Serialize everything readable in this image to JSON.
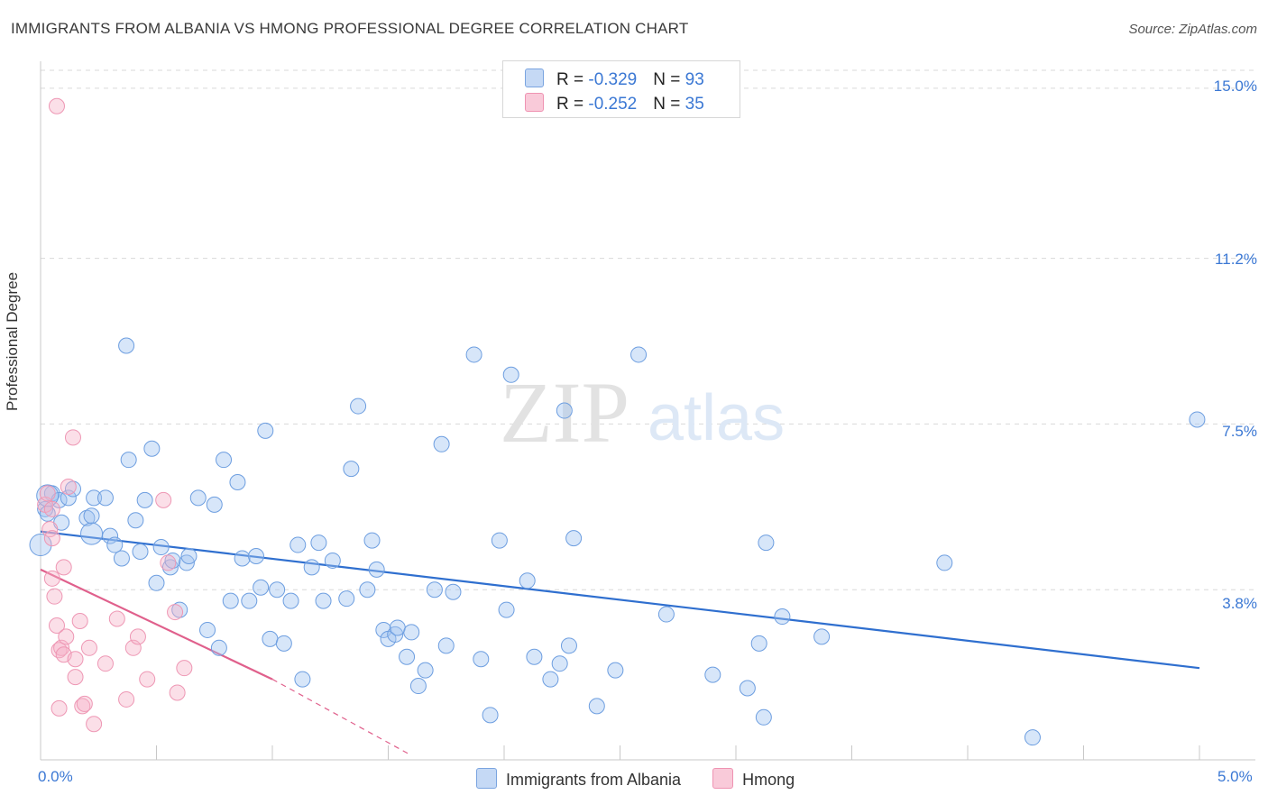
{
  "title": "IMMIGRANTS FROM ALBANIA VS HMONG PROFESSIONAL DEGREE CORRELATION CHART",
  "source": "Source: ZipAtlas.com",
  "watermark": {
    "zip": "ZIP",
    "atlas": "atlas"
  },
  "legend": {
    "albania": {
      "r_label": "R = ",
      "r_value": "-0.329",
      "n_label": "N = ",
      "n_value": "93",
      "color": "#8fb4e8"
    },
    "hmong": {
      "r_label": "R = ",
      "r_value": "-0.252",
      "n_label": "N = ",
      "n_value": "35",
      "color": "#f4a3be"
    }
  },
  "bottom_legend": {
    "albania": "Immigrants from Albania",
    "hmong": "Hmong"
  },
  "chart_data": {
    "type": "scatter",
    "title": "IMMIGRANTS FROM ALBANIA VS HMONG PROFESSIONAL DEGREE CORRELATION CHART",
    "xlabel": "",
    "ylabel": "Professional Degree",
    "xlim": [
      0,
      5.0
    ],
    "ylim": [
      0,
      15.4
    ],
    "x_tick_labels": [
      "0.0%",
      "5.0%"
    ],
    "y_ticks": [
      3.8,
      7.5,
      11.2,
      15.0
    ],
    "y_tick_labels": [
      "3.8%",
      "7.5%",
      "11.2%",
      "15.0%"
    ],
    "grid": true,
    "series": [
      {
        "name": "Immigrants from Albania",
        "color": "#8fb4e8",
        "line_color": "#2f6fcf",
        "trend": {
          "x": [
            0.0,
            5.0
          ],
          "y": [
            5.1,
            2.05
          ]
        },
        "points": [
          [
            0.02,
            5.6
          ],
          [
            0.03,
            5.5
          ],
          [
            0.05,
            5.95
          ],
          [
            0.08,
            5.8
          ],
          [
            0.09,
            5.3
          ],
          [
            0.12,
            5.85
          ],
          [
            0.14,
            6.05
          ],
          [
            0.2,
            5.4
          ],
          [
            0.22,
            5.45
          ],
          [
            0.23,
            5.85
          ],
          [
            0.28,
            5.85
          ],
          [
            0.3,
            5.0
          ],
          [
            0.32,
            4.8
          ],
          [
            0.35,
            4.5
          ],
          [
            0.37,
            9.25
          ],
          [
            0.38,
            6.7
          ],
          [
            0.41,
            5.35
          ],
          [
            0.43,
            4.65
          ],
          [
            0.45,
            5.8
          ],
          [
            0.48,
            6.95
          ],
          [
            0.5,
            3.95
          ],
          [
            0.52,
            4.75
          ],
          [
            0.56,
            4.3
          ],
          [
            0.57,
            4.45
          ],
          [
            0.6,
            3.35
          ],
          [
            0.63,
            4.4
          ],
          [
            0.64,
            4.55
          ],
          [
            0.68,
            5.85
          ],
          [
            0.72,
            2.9
          ],
          [
            0.75,
            5.7
          ],
          [
            0.77,
            2.5
          ],
          [
            0.79,
            6.7
          ],
          [
            0.82,
            3.55
          ],
          [
            0.85,
            6.2
          ],
          [
            0.87,
            4.5
          ],
          [
            0.9,
            3.55
          ],
          [
            0.93,
            4.55
          ],
          [
            0.95,
            3.85
          ],
          [
            0.97,
            7.35
          ],
          [
            0.99,
            2.7
          ],
          [
            1.02,
            3.8
          ],
          [
            1.05,
            2.6
          ],
          [
            1.08,
            3.55
          ],
          [
            1.11,
            4.8
          ],
          [
            1.13,
            1.8
          ],
          [
            1.17,
            4.3
          ],
          [
            1.2,
            4.85
          ],
          [
            1.22,
            3.55
          ],
          [
            1.26,
            4.45
          ],
          [
            1.32,
            3.6
          ],
          [
            1.34,
            6.5
          ],
          [
            1.37,
            7.9
          ],
          [
            1.41,
            3.8
          ],
          [
            1.43,
            4.9
          ],
          [
            1.45,
            4.25
          ],
          [
            1.48,
            2.9
          ],
          [
            1.5,
            2.7
          ],
          [
            1.53,
            2.8
          ],
          [
            1.54,
            2.95
          ],
          [
            1.58,
            2.3
          ],
          [
            1.6,
            2.85
          ],
          [
            1.63,
            1.65
          ],
          [
            1.66,
            2.0
          ],
          [
            1.7,
            3.8
          ],
          [
            1.73,
            7.05
          ],
          [
            1.75,
            2.55
          ],
          [
            1.78,
            3.75
          ],
          [
            1.87,
            9.05
          ],
          [
            1.9,
            2.25
          ],
          [
            1.94,
            1.0
          ],
          [
            1.98,
            4.9
          ],
          [
            2.01,
            3.35
          ],
          [
            2.03,
            8.6
          ],
          [
            2.1,
            4.0
          ],
          [
            2.13,
            2.3
          ],
          [
            2.2,
            1.8
          ],
          [
            2.24,
            2.15
          ],
          [
            2.26,
            7.8
          ],
          [
            2.28,
            2.55
          ],
          [
            2.3,
            4.95
          ],
          [
            2.4,
            1.2
          ],
          [
            2.48,
            2.0
          ],
          [
            2.58,
            9.05
          ],
          [
            2.7,
            3.25
          ],
          [
            2.9,
            1.9
          ],
          [
            3.05,
            1.6
          ],
          [
            3.1,
            2.6
          ],
          [
            3.12,
            0.95
          ],
          [
            3.13,
            4.85
          ],
          [
            3.2,
            3.2
          ],
          [
            3.37,
            2.75
          ],
          [
            3.9,
            4.4
          ],
          [
            4.28,
            0.5
          ],
          [
            4.99,
            7.6
          ]
        ],
        "big_points": [
          [
            0.0,
            4.8
          ],
          [
            0.03,
            5.9
          ],
          [
            0.22,
            5.05
          ]
        ]
      },
      {
        "name": "Hmong",
        "color": "#f4a3be",
        "line_color": "#e0608c",
        "trend": {
          "x": [
            0.0,
            1.0
          ],
          "y": [
            4.25,
            1.8
          ]
        },
        "trend_ext": {
          "x": [
            1.0,
            1.6
          ],
          "y": [
            1.8,
            0.1
          ]
        },
        "points": [
          [
            0.02,
            5.7
          ],
          [
            0.03,
            5.95
          ],
          [
            0.04,
            5.15
          ],
          [
            0.05,
            5.6
          ],
          [
            0.05,
            4.95
          ],
          [
            0.05,
            4.05
          ],
          [
            0.06,
            3.65
          ],
          [
            0.07,
            3.0
          ],
          [
            0.07,
            14.6
          ],
          [
            0.08,
            2.45
          ],
          [
            0.08,
            1.15
          ],
          [
            0.09,
            2.5
          ],
          [
            0.1,
            2.35
          ],
          [
            0.1,
            4.3
          ],
          [
            0.11,
            2.75
          ],
          [
            0.12,
            6.1
          ],
          [
            0.14,
            7.2
          ],
          [
            0.15,
            2.25
          ],
          [
            0.15,
            1.85
          ],
          [
            0.17,
            3.1
          ],
          [
            0.18,
            1.2
          ],
          [
            0.19,
            1.25
          ],
          [
            0.21,
            2.5
          ],
          [
            0.23,
            0.8
          ],
          [
            0.28,
            2.15
          ],
          [
            0.33,
            3.15
          ],
          [
            0.37,
            1.35
          ],
          [
            0.4,
            2.5
          ],
          [
            0.42,
            2.75
          ],
          [
            0.46,
            1.8
          ],
          [
            0.53,
            5.8
          ],
          [
            0.55,
            4.4
          ],
          [
            0.58,
            3.3
          ],
          [
            0.59,
            1.5
          ],
          [
            0.62,
            2.05
          ]
        ]
      }
    ]
  }
}
